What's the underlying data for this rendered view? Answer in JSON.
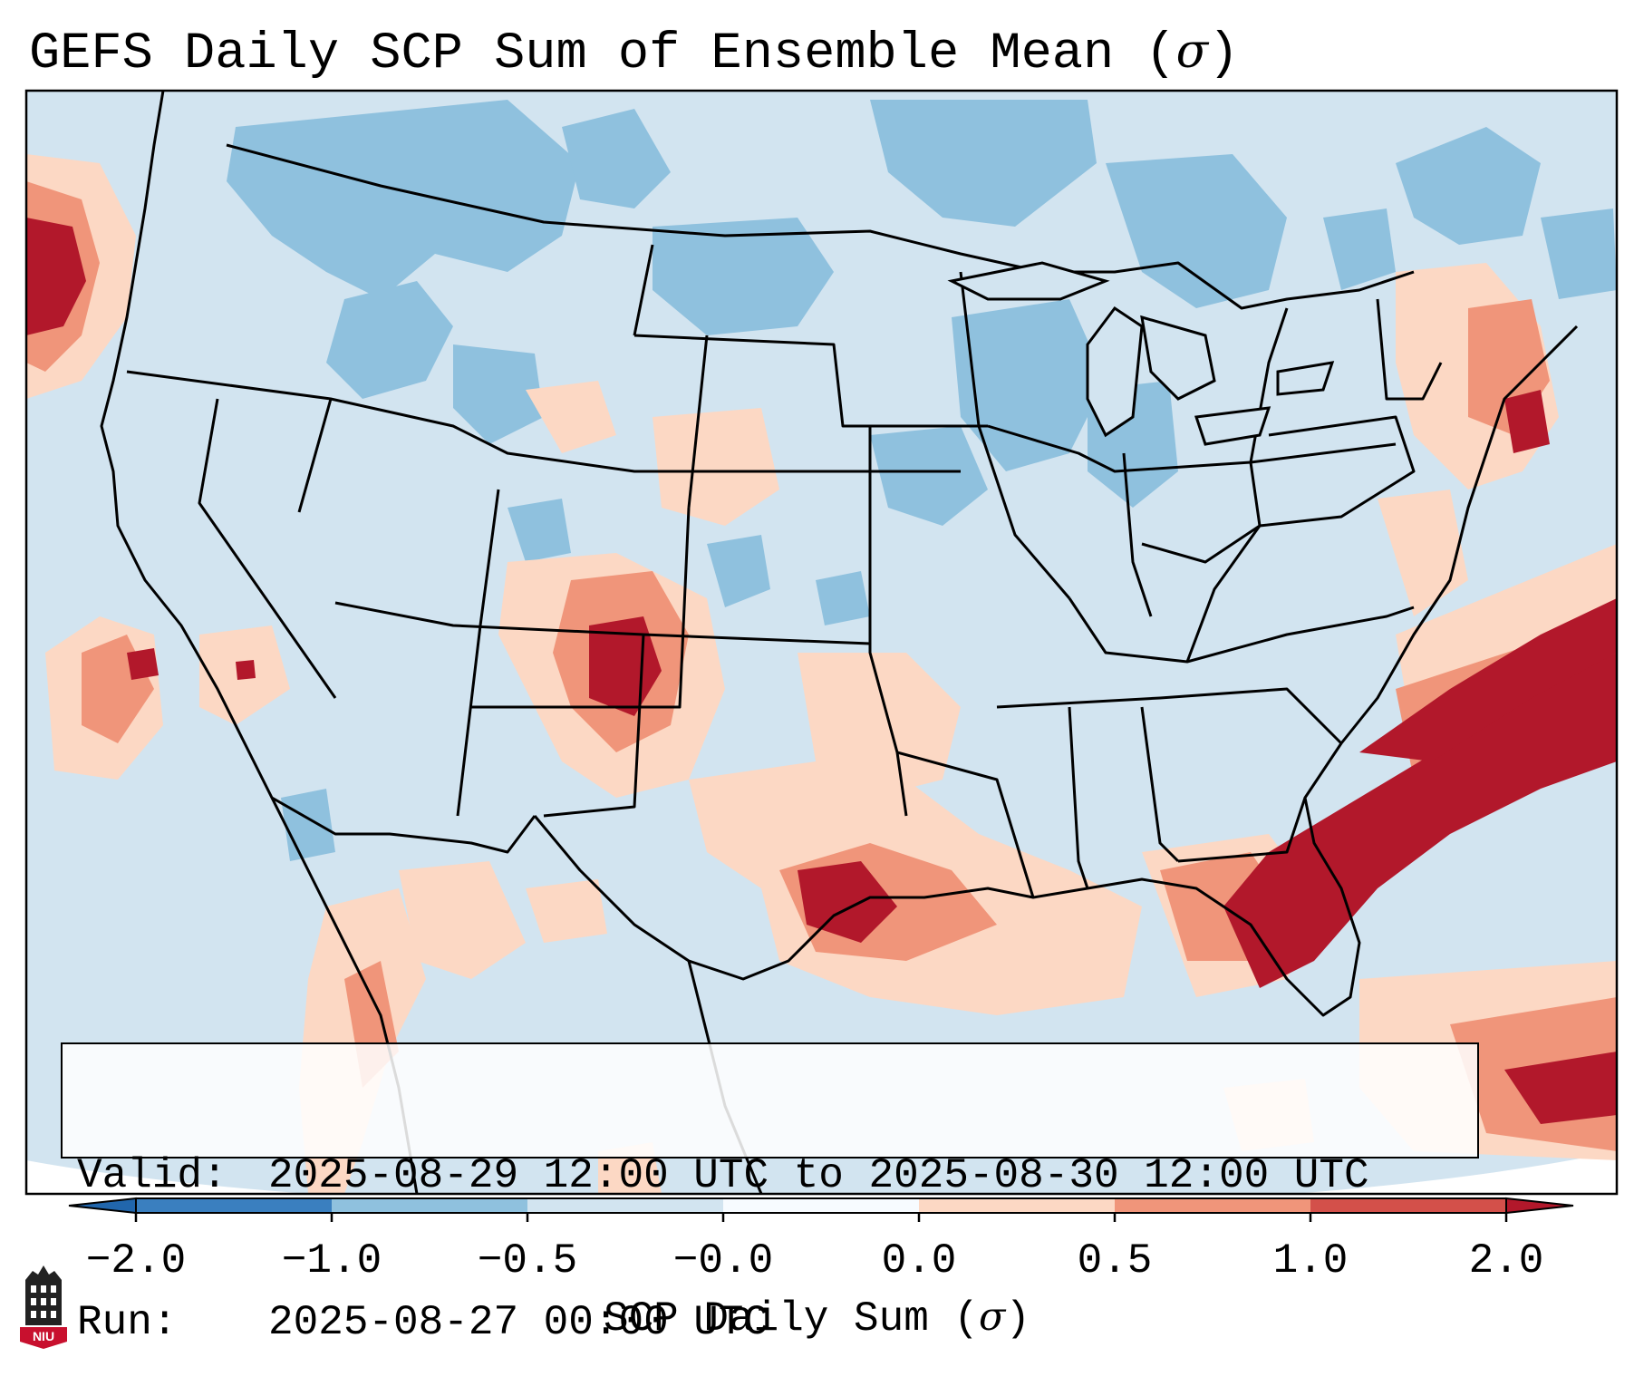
{
  "title": {
    "text": "GEFS Daily SCP Sum of Ensemble Mean",
    "unit_symbol": "σ"
  },
  "info": {
    "valid_label": "Valid:",
    "valid_value": "2025-08-29 12:00 UTC to 2025-08-30 12:00 UTC",
    "run_label": "Run:",
    "run_value": "2025-08-27 00:00 UTC"
  },
  "colorbar": {
    "label_text": "SCP Daily Sum",
    "label_symbol": "σ",
    "ticks": [
      "−2.0",
      "−1.0",
      "−0.5",
      "−0.0",
      "0.0",
      "0.5",
      "1.0",
      "2.0"
    ],
    "colors": [
      "#3a7fbf",
      "#8fc1de",
      "#d2e4f0",
      "#f7fbff",
      "#fcd8c4",
      "#f0957a",
      "#d3504a",
      "#b2182b"
    ]
  },
  "logo": {
    "text": "NIU",
    "color": "#c8102e"
  }
}
